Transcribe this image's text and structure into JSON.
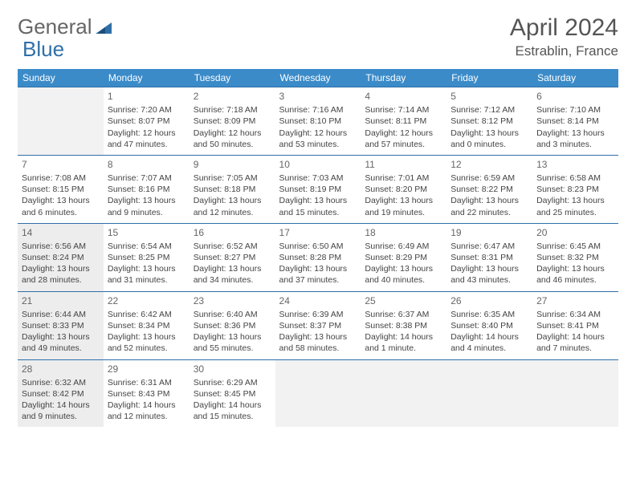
{
  "brand": {
    "part1": "General",
    "part2": "Blue"
  },
  "title": "April 2024",
  "location": "Estrablin, France",
  "colors": {
    "header_bg": "#3b8bc9",
    "accent": "#2f6fa8",
    "text": "#444444",
    "muted_bg": "#ededed"
  },
  "day_headers": [
    "Sunday",
    "Monday",
    "Tuesday",
    "Wednesday",
    "Thursday",
    "Friday",
    "Saturday"
  ],
  "weeks": [
    [
      null,
      {
        "n": "1",
        "sr": "Sunrise: 7:20 AM",
        "ss": "Sunset: 8:07 PM",
        "dl": "Daylight: 12 hours and 47 minutes."
      },
      {
        "n": "2",
        "sr": "Sunrise: 7:18 AM",
        "ss": "Sunset: 8:09 PM",
        "dl": "Daylight: 12 hours and 50 minutes."
      },
      {
        "n": "3",
        "sr": "Sunrise: 7:16 AM",
        "ss": "Sunset: 8:10 PM",
        "dl": "Daylight: 12 hours and 53 minutes."
      },
      {
        "n": "4",
        "sr": "Sunrise: 7:14 AM",
        "ss": "Sunset: 8:11 PM",
        "dl": "Daylight: 12 hours and 57 minutes."
      },
      {
        "n": "5",
        "sr": "Sunrise: 7:12 AM",
        "ss": "Sunset: 8:12 PM",
        "dl": "Daylight: 13 hours and 0 minutes."
      },
      {
        "n": "6",
        "sr": "Sunrise: 7:10 AM",
        "ss": "Sunset: 8:14 PM",
        "dl": "Daylight: 13 hours and 3 minutes."
      }
    ],
    [
      {
        "n": "7",
        "sr": "Sunrise: 7:08 AM",
        "ss": "Sunset: 8:15 PM",
        "dl": "Daylight: 13 hours and 6 minutes."
      },
      {
        "n": "8",
        "sr": "Sunrise: 7:07 AM",
        "ss": "Sunset: 8:16 PM",
        "dl": "Daylight: 13 hours and 9 minutes."
      },
      {
        "n": "9",
        "sr": "Sunrise: 7:05 AM",
        "ss": "Sunset: 8:18 PM",
        "dl": "Daylight: 13 hours and 12 minutes."
      },
      {
        "n": "10",
        "sr": "Sunrise: 7:03 AM",
        "ss": "Sunset: 8:19 PM",
        "dl": "Daylight: 13 hours and 15 minutes."
      },
      {
        "n": "11",
        "sr": "Sunrise: 7:01 AM",
        "ss": "Sunset: 8:20 PM",
        "dl": "Daylight: 13 hours and 19 minutes."
      },
      {
        "n": "12",
        "sr": "Sunrise: 6:59 AM",
        "ss": "Sunset: 8:22 PM",
        "dl": "Daylight: 13 hours and 22 minutes."
      },
      {
        "n": "13",
        "sr": "Sunrise: 6:58 AM",
        "ss": "Sunset: 8:23 PM",
        "dl": "Daylight: 13 hours and 25 minutes."
      }
    ],
    [
      {
        "n": "14",
        "sr": "Sunrise: 6:56 AM",
        "ss": "Sunset: 8:24 PM",
        "dl": "Daylight: 13 hours and 28 minutes.",
        "shade": true
      },
      {
        "n": "15",
        "sr": "Sunrise: 6:54 AM",
        "ss": "Sunset: 8:25 PM",
        "dl": "Daylight: 13 hours and 31 minutes."
      },
      {
        "n": "16",
        "sr": "Sunrise: 6:52 AM",
        "ss": "Sunset: 8:27 PM",
        "dl": "Daylight: 13 hours and 34 minutes."
      },
      {
        "n": "17",
        "sr": "Sunrise: 6:50 AM",
        "ss": "Sunset: 8:28 PM",
        "dl": "Daylight: 13 hours and 37 minutes."
      },
      {
        "n": "18",
        "sr": "Sunrise: 6:49 AM",
        "ss": "Sunset: 8:29 PM",
        "dl": "Daylight: 13 hours and 40 minutes."
      },
      {
        "n": "19",
        "sr": "Sunrise: 6:47 AM",
        "ss": "Sunset: 8:31 PM",
        "dl": "Daylight: 13 hours and 43 minutes."
      },
      {
        "n": "20",
        "sr": "Sunrise: 6:45 AM",
        "ss": "Sunset: 8:32 PM",
        "dl": "Daylight: 13 hours and 46 minutes."
      }
    ],
    [
      {
        "n": "21",
        "sr": "Sunrise: 6:44 AM",
        "ss": "Sunset: 8:33 PM",
        "dl": "Daylight: 13 hours and 49 minutes.",
        "shade": true
      },
      {
        "n": "22",
        "sr": "Sunrise: 6:42 AM",
        "ss": "Sunset: 8:34 PM",
        "dl": "Daylight: 13 hours and 52 minutes."
      },
      {
        "n": "23",
        "sr": "Sunrise: 6:40 AM",
        "ss": "Sunset: 8:36 PM",
        "dl": "Daylight: 13 hours and 55 minutes."
      },
      {
        "n": "24",
        "sr": "Sunrise: 6:39 AM",
        "ss": "Sunset: 8:37 PM",
        "dl": "Daylight: 13 hours and 58 minutes."
      },
      {
        "n": "25",
        "sr": "Sunrise: 6:37 AM",
        "ss": "Sunset: 8:38 PM",
        "dl": "Daylight: 14 hours and 1 minute."
      },
      {
        "n": "26",
        "sr": "Sunrise: 6:35 AM",
        "ss": "Sunset: 8:40 PM",
        "dl": "Daylight: 14 hours and 4 minutes."
      },
      {
        "n": "27",
        "sr": "Sunrise: 6:34 AM",
        "ss": "Sunset: 8:41 PM",
        "dl": "Daylight: 14 hours and 7 minutes."
      }
    ],
    [
      {
        "n": "28",
        "sr": "Sunrise: 6:32 AM",
        "ss": "Sunset: 8:42 PM",
        "dl": "Daylight: 14 hours and 9 minutes.",
        "shade": true
      },
      {
        "n": "29",
        "sr": "Sunrise: 6:31 AM",
        "ss": "Sunset: 8:43 PM",
        "dl": "Daylight: 14 hours and 12 minutes."
      },
      {
        "n": "30",
        "sr": "Sunrise: 6:29 AM",
        "ss": "Sunset: 8:45 PM",
        "dl": "Daylight: 14 hours and 15 minutes."
      },
      null,
      null,
      null,
      null
    ]
  ]
}
